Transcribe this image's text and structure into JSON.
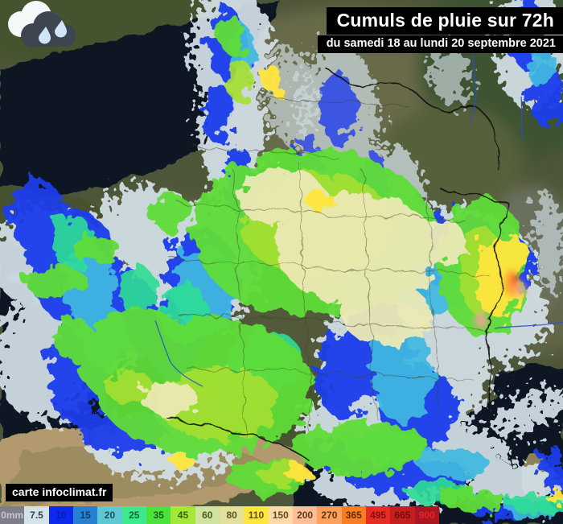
{
  "header": {
    "title": "Cumuls de pluie sur 72h",
    "subtitle": "du samedi 18 au lundi 20 septembre 2021"
  },
  "credit": {
    "label": "carte infoclimat.fr"
  },
  "icon": {
    "name": "rain-cloud-icon",
    "back_cloud_color": "#f4f8f8",
    "front_cloud_color": "#3d4550",
    "drop_color": "#cfe6f6"
  },
  "map": {
    "description": "72h accumulated rainfall radar map of France",
    "sea_color": "#071220",
    "land_color": "#4e5639",
    "spain_color": "#b29a6e"
  },
  "legend": {
    "unit": "mm",
    "cells": [
      {
        "label": "0mm",
        "bg": "#7e7e8a",
        "fg": "#c6c6ce"
      },
      {
        "label": "7.5",
        "bg": "#d4e2ea",
        "fg": "#3a3f48"
      },
      {
        "label": "10",
        "bg": "#0a28ee",
        "fg": "#0a1cae"
      },
      {
        "label": "15",
        "bg": "#2781d2",
        "fg": "#123a5c"
      },
      {
        "label": "20",
        "bg": "#5cc9d4",
        "fg": "#1e4f56"
      },
      {
        "label": "25",
        "bg": "#3ce98c",
        "fg": "#156339"
      },
      {
        "label": "35",
        "bg": "#4ce23c",
        "fg": "#1d5c1a"
      },
      {
        "label": "45",
        "bg": "#a2e836",
        "fg": "#3f5c12"
      },
      {
        "label": "60",
        "bg": "#cfe2a0",
        "fg": "#4f5a28"
      },
      {
        "label": "80",
        "bg": "#e4e09c",
        "fg": "#56522a"
      },
      {
        "label": "110",
        "bg": "#ffe53c",
        "fg": "#5c5214"
      },
      {
        "label": "150",
        "bg": "#ffd9a8",
        "fg": "#5c4a22"
      },
      {
        "label": "200",
        "bg": "#ffbf96",
        "fg": "#5c3a1e"
      },
      {
        "label": "270",
        "bg": "#ffa05e",
        "fg": "#5c330f"
      },
      {
        "label": "365",
        "bg": "#fb7d22",
        "fg": "#5c2a08"
      },
      {
        "label": "495",
        "bg": "#e62c24",
        "fg": "#7e120e"
      },
      {
        "label": "665",
        "bg": "#c41e1e",
        "fg": "#6e0e0e"
      },
      {
        "label": "900",
        "bg": "#aa1522",
        "fg": "#e2262a"
      }
    ]
  }
}
